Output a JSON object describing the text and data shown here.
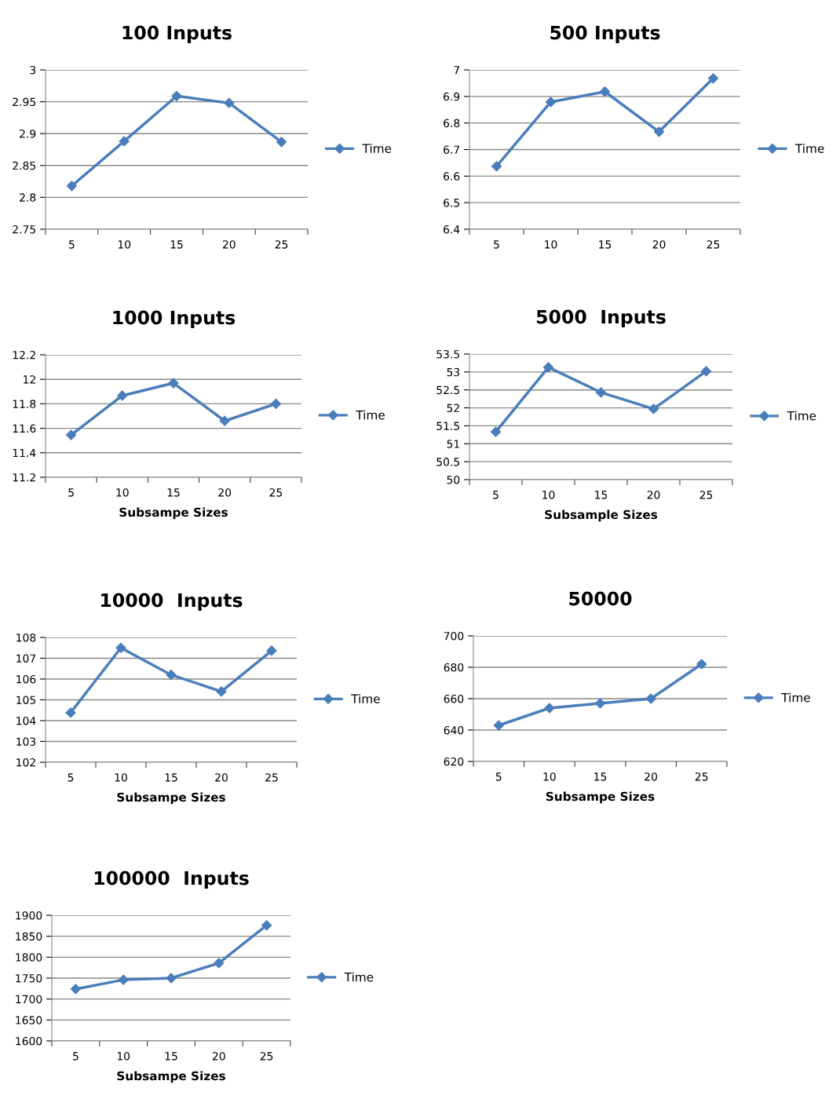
{
  "chart_data": [
    {
      "type": "line",
      "title": "100 Inputs",
      "categories": [
        "5",
        "10",
        "15",
        "20",
        "25"
      ],
      "series": [
        {
          "name": "Time",
          "color": "#4a7ebb",
          "values": [
            2.818,
            2.888,
            2.959,
            2.948,
            2.887
          ]
        }
      ],
      "ylim": [
        2.75,
        3
      ],
      "yticks": [
        {
          "value": 2.75,
          "label": "2.75"
        },
        {
          "value": 2.8,
          "label": "2.8"
        },
        {
          "value": 2.85,
          "label": "2.85"
        },
        {
          "value": 2.9,
          "label": "2.9"
        },
        {
          "value": 2.95,
          "label": "2.95"
        },
        {
          "value": 3,
          "label": "3"
        }
      ],
      "grid": "y",
      "legend": "right",
      "marker": "diamond"
    },
    {
      "type": "line",
      "title": "500 Inputs",
      "categories": [
        "5",
        "10",
        "15",
        "20",
        "25"
      ],
      "series": [
        {
          "name": "Time",
          "color": "#4a7ebb",
          "values": [
            6.637,
            6.879,
            6.918,
            6.767,
            6.968
          ]
        }
      ],
      "ylim": [
        6.4,
        7
      ],
      "yticks": [
        {
          "value": 6.4,
          "label": "6.4"
        },
        {
          "value": 6.5,
          "label": "6.5"
        },
        {
          "value": 6.6,
          "label": "6.6"
        },
        {
          "value": 6.7,
          "label": "6.7"
        },
        {
          "value": 6.8,
          "label": "6.8"
        },
        {
          "value": 6.9,
          "label": "6.9"
        },
        {
          "value": 7,
          "label": "7"
        }
      ],
      "grid": "y",
      "legend": "right",
      "marker": "diamond"
    },
    {
      "type": "line",
      "title": "1000 Inputs",
      "xlabel": "Subsampe Sizes",
      "categories": [
        "5",
        "10",
        "15",
        "20",
        "25"
      ],
      "series": [
        {
          "name": "Time",
          "color": "#4a7ebb",
          "values": [
            11.546,
            11.867,
            11.969,
            11.66,
            11.8
          ]
        }
      ],
      "ylim": [
        11.2,
        12.2
      ],
      "yticks": [
        {
          "value": 11.2,
          "label": "11.2"
        },
        {
          "value": 11.4,
          "label": "11.4"
        },
        {
          "value": 11.6,
          "label": "11.6"
        },
        {
          "value": 11.8,
          "label": "11.8"
        },
        {
          "value": 12,
          "label": "12"
        },
        {
          "value": 12.2,
          "label": "12.2"
        }
      ],
      "grid": "y",
      "legend": "right",
      "marker": "diamond"
    },
    {
      "type": "line",
      "title": "5000  Inputs",
      "xlabel": "Subsample Sizes",
      "categories": [
        "5",
        "10",
        "15",
        "20",
        "25"
      ],
      "series": [
        {
          "name": "Time",
          "color": "#4a7ebb",
          "values": [
            51.33,
            53.13,
            52.43,
            51.97,
            53.02
          ]
        }
      ],
      "ylim": [
        50,
        53.5
      ],
      "yticks": [
        {
          "value": 50,
          "label": "50"
        },
        {
          "value": 50.5,
          "label": "50.5"
        },
        {
          "value": 51,
          "label": "51"
        },
        {
          "value": 51.5,
          "label": "51.5"
        },
        {
          "value": 52,
          "label": "52"
        },
        {
          "value": 52.5,
          "label": "52.5"
        },
        {
          "value": 53,
          "label": "53"
        },
        {
          "value": 53.5,
          "label": "53.5"
        }
      ],
      "grid": "y",
      "legend": "right",
      "marker": "diamond"
    },
    {
      "type": "line",
      "title": "10000  Inputs",
      "xlabel": "Subsampe Sizes",
      "categories": [
        "5",
        "10",
        "15",
        "20",
        "25"
      ],
      "series": [
        {
          "name": "Time",
          "color": "#4a7ebb",
          "values": [
            104.38,
            107.5,
            106.2,
            105.4,
            107.36
          ]
        }
      ],
      "ylim": [
        102,
        108
      ],
      "yticks": [
        102,
        103,
        104,
        105,
        106,
        107,
        108
      ],
      "grid": "y",
      "legend": "right",
      "marker": "diamond"
    },
    {
      "type": "line",
      "title": "50000",
      "xlabel": "Subsampe Sizes",
      "categories": [
        "5",
        "10",
        "15",
        "20",
        "25"
      ],
      "series": [
        {
          "name": "Time",
          "color": "#4a7ebb",
          "values": [
            643,
            654,
            657,
            660,
            682
          ]
        }
      ],
      "ylim": [
        620,
        700
      ],
      "yticks": [
        620,
        640,
        660,
        680,
        700
      ],
      "grid": "y",
      "legend": "right",
      "marker": "diamond"
    },
    {
      "type": "line",
      "title": "100000  Inputs",
      "xlabel": "Subsampe Sizes",
      "categories": [
        "5",
        "10",
        "15",
        "20",
        "25"
      ],
      "series": [
        {
          "name": "Time",
          "color": "#4a7ebb",
          "values": [
            1724,
            1746,
            1750,
            1786,
            1876
          ]
        }
      ],
      "ylim": [
        1600,
        1900
      ],
      "yticks": [
        1600,
        1650,
        1700,
        1750,
        1800,
        1850,
        1900
      ],
      "grid": "y",
      "legend": "right",
      "marker": "diamond"
    }
  ]
}
